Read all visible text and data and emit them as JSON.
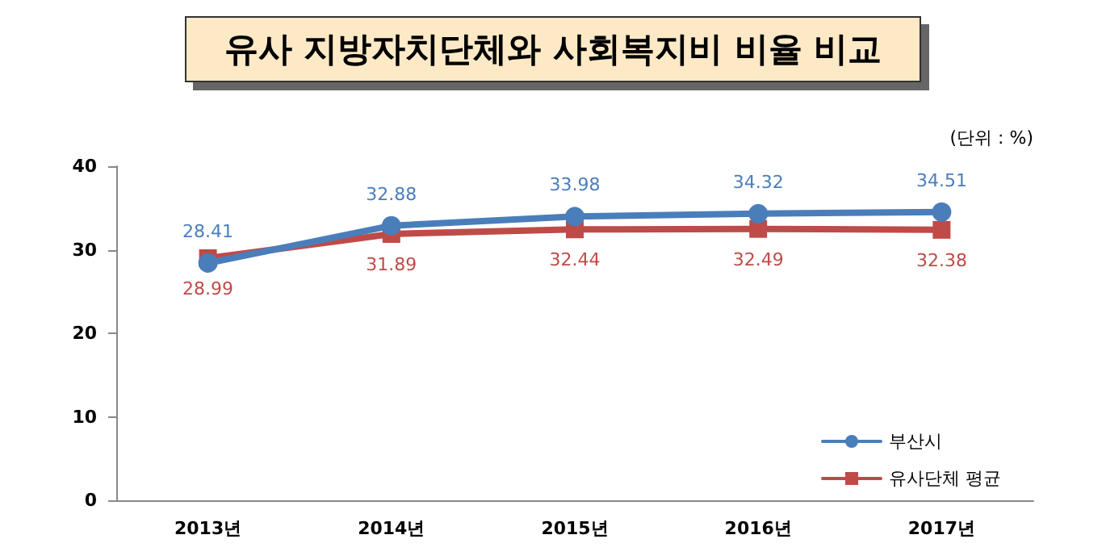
{
  "chart_data": {
    "type": "line",
    "title": "유사 지방자치단체와 사회복지비 비율 비교",
    "annotations": [
      "(단위 : %)"
    ],
    "categories": [
      "2013년",
      "2014년",
      "2015년",
      "2016년",
      "2017년"
    ],
    "series": [
      {
        "name": "부산시",
        "color": "#4a7ebb",
        "values": [
          28.41,
          32.88,
          33.98,
          34.32,
          34.51
        ],
        "marker": "circle"
      },
      {
        "name": "유사단체 평균",
        "color": "#be4b48",
        "values": [
          28.99,
          31.89,
          32.44,
          32.49,
          32.38
        ],
        "marker": "square"
      }
    ],
    "ylim": [
      0,
      40
    ],
    "yticks": [
      0,
      10,
      20,
      30,
      40
    ],
    "grid": false,
    "legend": "bottom right",
    "data_labels": true,
    "line_style": "solid"
  }
}
